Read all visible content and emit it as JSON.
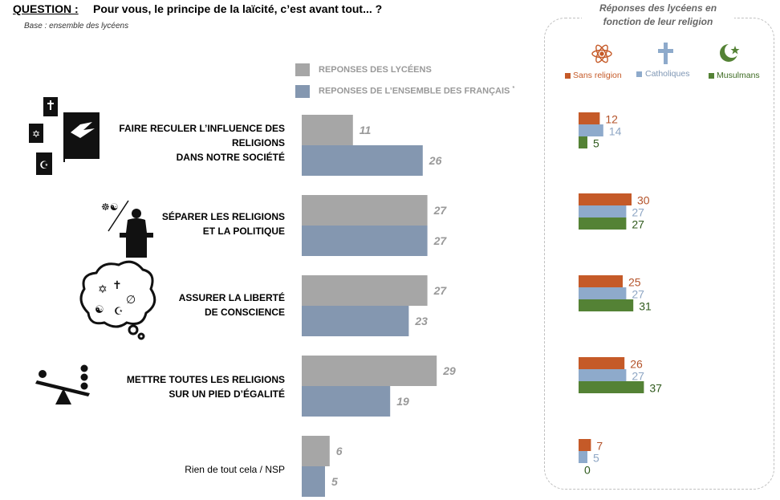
{
  "header": {
    "question_label": "QUESTION :",
    "question_text": "Pour vous, le principe de la laïcité, c’est avant tout... ?",
    "base": "Base : ensemble des lycéens"
  },
  "legend": {
    "lyceens": "REPONSES DES LYCÉENS",
    "francais": "REPONSES DE L’ENSEMBLE DES FRANÇAIS",
    "francais_mark": "*"
  },
  "religion_panel": {
    "title": "Réponses des lycéens en fonction de leur religion",
    "legend": [
      "Sans religion",
      "Catholiques",
      "Musulmans"
    ]
  },
  "icons": [
    "religious-books-icon",
    "politician-podium-icon",
    "thought-bubble-symbols-icon",
    "balance-scale-icon",
    "atom-icon",
    "cross-icon",
    "crescent-star-icon"
  ],
  "colors": {
    "lyceens": "#a6a6a6",
    "francais": "#8497b0",
    "sans_religion": "#c55a28",
    "catholiques": "#8eaacb",
    "musulmans": "#548235",
    "value_text": "#999999"
  },
  "chart_data": [
    {
      "type": "bar",
      "orientation": "horizontal",
      "categories": [
        "FAIRE RECULER L’INFLUENCE DES RELIGIONS DANS NOTRE SOCIÉTÉ",
        "SÉPARER LES RELIGIONS ET LA POLITIQUE",
        "ASSURER LA LIBERTÉ DE CONSCIENCE",
        "METTRE TOUTES LES RELIGIONS SUR UN PIED D’ÉGALITÉ",
        "Rien de tout cela / NSP"
      ],
      "category_lines": [
        [
          "FAIRE RECULER L’INFLUENCE DES",
          "RELIGIONS",
          "DANS NOTRE SOCIÉTÉ"
        ],
        [
          "SÉPARER LES RELIGIONS",
          "ET LA POLITIQUE"
        ],
        [
          "ASSURER LA LIBERTÉ",
          "DE CONSCIENCE"
        ],
        [
          "METTRE TOUTES LES RELIGIONS",
          "SUR UN PIED D’ÉGALITÉ"
        ],
        [
          "Rien de tout cela / NSP"
        ]
      ],
      "series": [
        {
          "name": "REPONSES DES LYCÉENS",
          "values": [
            11,
            27,
            27,
            29,
            6
          ]
        },
        {
          "name": "REPONSES DE L’ENSEMBLE DES FRANÇAIS",
          "values": [
            26,
            27,
            23,
            19,
            5
          ]
        }
      ],
      "xlim": [
        0,
        30
      ],
      "grid": false
    },
    {
      "type": "bar",
      "orientation": "horizontal",
      "categories": [
        "FAIRE RECULER L’INFLUENCE DES RELIGIONS DANS NOTRE SOCIÉTÉ",
        "SÉPARER LES RELIGIONS ET LA POLITIQUE",
        "ASSURER LA LIBERTÉ DE CONSCIENCE",
        "METTRE TOUTES LES RELIGIONS SUR UN PIED D’ÉGALITÉ",
        "Rien de tout cela / NSP"
      ],
      "series": [
        {
          "name": "Sans religion",
          "values": [
            12,
            30,
            25,
            26,
            7
          ]
        },
        {
          "name": "Catholiques",
          "values": [
            14,
            27,
            27,
            27,
            5
          ]
        },
        {
          "name": "Musulmans",
          "values": [
            5,
            27,
            31,
            37,
            0
          ]
        }
      ],
      "title": "Réponses des lycéens en fonction de leur religion",
      "legend_position": "top",
      "xlim": [
        0,
        40
      ],
      "grid": false
    }
  ]
}
